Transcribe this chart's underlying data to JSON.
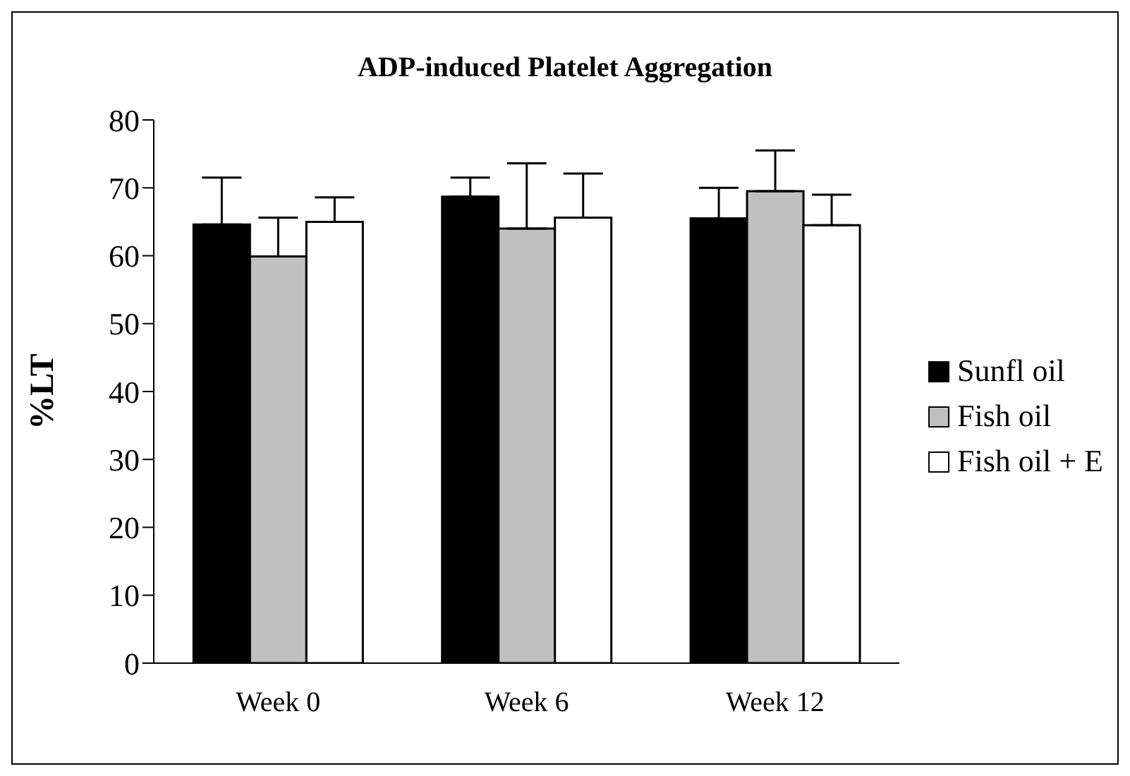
{
  "chart_data": {
    "type": "bar",
    "title": "ADP-induced Platelet Aggregation",
    "ylabel": "%LT",
    "categories": [
      "Week 0",
      "Week 6",
      "Week 12"
    ],
    "series": [
      {
        "name": "Sunfl oil",
        "color": "#000000",
        "values": [
          64.6,
          68.7,
          65.5
        ],
        "errors": [
          [
            64.6,
            71.5
          ],
          [
            68.7,
            71.5
          ],
          [
            65.5,
            70
          ]
        ]
      },
      {
        "name": "Fish oil",
        "color": "#c0c0c0",
        "values": [
          59.9,
          64.0,
          69.5
        ],
        "errors": [
          [
            59.9,
            65.6
          ],
          [
            64.0,
            73.6
          ],
          [
            69.5,
            75.5
          ]
        ]
      },
      {
        "name": "Fish oil + E",
        "color": "#ffffff",
        "values": [
          65.0,
          65.6,
          64.5
        ],
        "errors": [
          [
            65.0,
            68.6
          ],
          [
            65.6,
            72.1
          ],
          [
            64.5,
            69
          ]
        ]
      }
    ],
    "ylim": [
      0,
      80
    ],
    "yticks": [
      0,
      10,
      20,
      30,
      40,
      50,
      60,
      70,
      80
    ],
    "grid": false,
    "legend": "right"
  }
}
